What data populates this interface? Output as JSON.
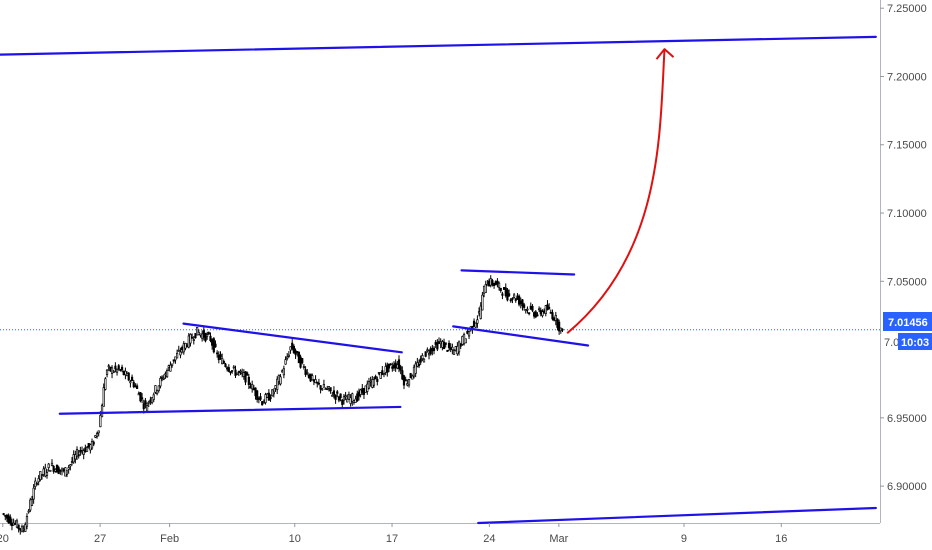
{
  "chart_data": {
    "type": "candlestick",
    "title": "",
    "xlabel": "",
    "ylabel": "",
    "ylim": [
      6.873,
      7.256
    ],
    "x_range_days": [
      -0.2,
      63.1
    ],
    "x_ticks": [
      {
        "label": "20",
        "day": 0
      },
      {
        "label": "27",
        "day": 7
      },
      {
        "label": "Feb",
        "day": 12
      },
      {
        "label": "10",
        "day": 21
      },
      {
        "label": "17",
        "day": 28
      },
      {
        "label": "24",
        "day": 35
      },
      {
        "label": "Mar",
        "day": 40
      },
      {
        "label": "9",
        "day": 49
      },
      {
        "label": "16",
        "day": 56
      }
    ],
    "y_ticks": [
      "7.25000",
      "7.20000",
      "7.15000",
      "7.10000",
      "7.05000",
      "6.95000",
      "6.90000"
    ],
    "y_tick_values": [
      7.25,
      7.2,
      7.15,
      7.1,
      7.05,
      6.95,
      6.9
    ],
    "last_price": {
      "value": 7.01456,
      "label": "7.01456",
      "partial_label": "7.0",
      "countdown": "10:03",
      "color": "#2962ff"
    },
    "price_path": [
      [
        0.0,
        6.88
      ],
      [
        1.0,
        6.872
      ],
      [
        1.5,
        6.867
      ],
      [
        2.5,
        6.905
      ],
      [
        3.5,
        6.915
      ],
      [
        4.5,
        6.91
      ],
      [
        5.5,
        6.925
      ],
      [
        6.5,
        6.93
      ],
      [
        7.0,
        6.945
      ],
      [
        7.5,
        6.985
      ],
      [
        8.5,
        6.985
      ],
      [
        9.5,
        6.975
      ],
      [
        10.3,
        6.958
      ],
      [
        11.3,
        6.975
      ],
      [
        12.3,
        6.992
      ],
      [
        13.3,
        7.005
      ],
      [
        14.0,
        7.013
      ],
      [
        15.0,
        7.008
      ],
      [
        15.5,
        6.995
      ],
      [
        16.5,
        6.985
      ],
      [
        17.5,
        6.98
      ],
      [
        18.0,
        6.972
      ],
      [
        18.7,
        6.962
      ],
      [
        19.5,
        6.968
      ],
      [
        20.2,
        6.985
      ],
      [
        20.8,
        7.003
      ],
      [
        21.5,
        6.99
      ],
      [
        22.5,
        6.975
      ],
      [
        23.5,
        6.97
      ],
      [
        24.5,
        6.963
      ],
      [
        25.5,
        6.965
      ],
      [
        26.5,
        6.975
      ],
      [
        27.5,
        6.985
      ],
      [
        28.5,
        6.99
      ],
      [
        29.0,
        6.975
      ],
      [
        30.0,
        6.99
      ],
      [
        30.5,
        6.998
      ],
      [
        31.5,
        7.005
      ],
      [
        32.5,
        6.998
      ],
      [
        33.5,
        7.012
      ],
      [
        34.3,
        7.025
      ],
      [
        34.8,
        7.05
      ],
      [
        35.5,
        7.048
      ],
      [
        36.3,
        7.04
      ],
      [
        37.0,
        7.038
      ],
      [
        37.7,
        7.03
      ],
      [
        38.5,
        7.026
      ],
      [
        39.2,
        7.03
      ],
      [
        39.8,
        7.023
      ],
      [
        40.3,
        7.012
      ]
    ],
    "colors": {
      "up": "#ffffff",
      "down": "#000000",
      "wick": "#000000",
      "trendline": "#1e12e8",
      "arrow": "#e01010"
    },
    "trendlines": [
      {
        "name": "upper-channel",
        "x": [
          -0.2,
          62.8
        ],
        "y": [
          7.216,
          7.229
        ]
      },
      {
        "name": "lower-channel",
        "x": [
          34.2,
          62.8
        ],
        "y": [
          6.873,
          6.884
        ]
      },
      {
        "name": "triangle-top",
        "x": [
          13.0,
          28.7
        ],
        "y": [
          7.019,
          6.998
        ]
      },
      {
        "name": "triangle-bottom",
        "x": [
          4.1,
          28.6
        ],
        "y": [
          6.953,
          6.958
        ]
      },
      {
        "name": "flag-top",
        "x": [
          33.0,
          41.1
        ],
        "y": [
          7.058,
          7.055
        ]
      },
      {
        "name": "flag-bottom",
        "x": [
          32.4,
          42.1
        ],
        "y": [
          7.017,
          7.003
        ]
      }
    ],
    "forecast_arrow": {
      "from": [
        40.6,
        7.012
      ],
      "to": [
        47.6,
        7.22
      ]
    }
  }
}
